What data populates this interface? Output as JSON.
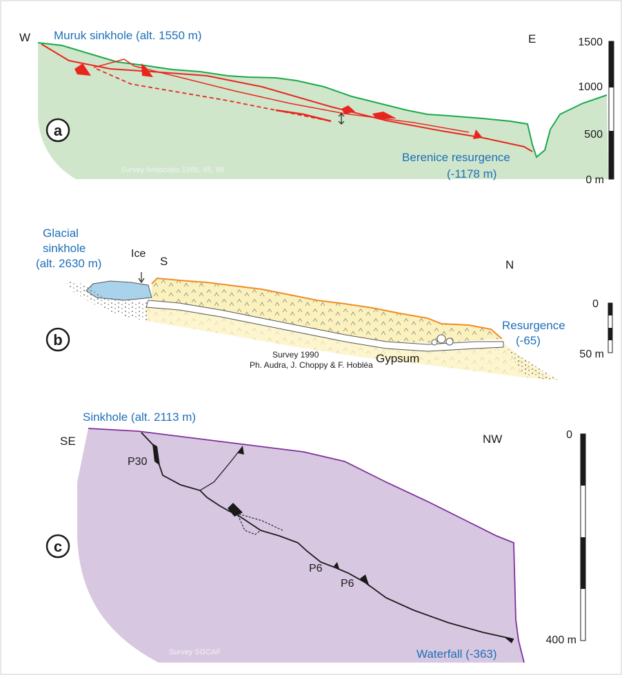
{
  "panel_a": {
    "badge": "a",
    "title": "Muruk sinkhole (alt. 1550 m)",
    "west": "W",
    "east": "E",
    "outlet_label_line1": "Berenice resurgence",
    "outlet_label_line2": "(-1178 m)",
    "credit": "Survey  Antipodes 1985, 95, 98",
    "scale_labels": [
      "1500",
      "1000",
      "500",
      "0 m"
    ],
    "colors": {
      "fill": "#cfe6cb",
      "outline": "#1aa84a",
      "cave": "#e8261e"
    }
  },
  "panel_b": {
    "badge": "b",
    "title_line1": "Glacial",
    "title_line2": "sinkhole",
    "title_line3": "(alt. 2630 m)",
    "ice_label": "Ice",
    "south": "S",
    "north": "N",
    "outlet_label_line1": "Resurgence",
    "outlet_label_line2": "(-65)",
    "rock_label": "Gypsum",
    "credit_line1": "Survey  1990",
    "credit_line2": "Ph. Audra, J. Choppy & F. Hobléa",
    "scale_labels": [
      "0",
      "50 m"
    ],
    "colors": {
      "fill": "#fbf1bd",
      "outline": "#f08c22",
      "ice": "#a9d3ea"
    }
  },
  "panel_c": {
    "badge": "c",
    "title": "Sinkhole (alt. 2113 m)",
    "southeast": "SE",
    "northwest": "NW",
    "pitch_labels": [
      "P30",
      "P6",
      "P6"
    ],
    "outlet_label": "Waterfall (-363)",
    "credit": "Survey  SGCAF",
    "scale_labels": [
      "0",
      "400 m"
    ],
    "colors": {
      "fill": "#d8c7e1",
      "outline": "#7f2f9c"
    }
  }
}
